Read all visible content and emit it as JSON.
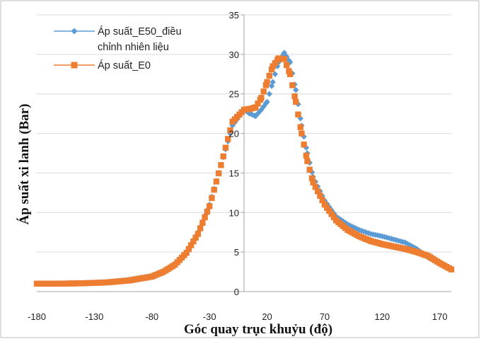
{
  "chart_data": {
    "type": "scatter",
    "title": "",
    "xlabel": "Góc quay trục khuỷu (độ)",
    "ylabel": "Áp suất xi lanh (Bar)",
    "xlim": [
      -180,
      180
    ],
    "ylim": [
      0,
      35
    ],
    "xticks": [
      -180,
      -130,
      -80,
      -30,
      20,
      70,
      120,
      170
    ],
    "yticks": [
      0,
      5,
      10,
      15,
      20,
      25,
      30,
      35
    ],
    "grid": "horizontal",
    "legend_position": "top-left",
    "series": [
      {
        "name": "Áp suất_E50_điều chỉnh nhiên liệu",
        "legend_lines": [
          "Áp suất_E50_điều",
          "chỉnh nhiên liệu"
        ],
        "color": "#5b9bd5",
        "marker": "diamond",
        "x": [
          -180,
          -160,
          -140,
          -120,
          -100,
          -80,
          -70,
          -60,
          -50,
          -40,
          -30,
          -20,
          -10,
          0,
          5,
          10,
          15,
          20,
          25,
          30,
          35,
          40,
          45,
          50,
          55,
          60,
          70,
          80,
          90,
          100,
          110,
          120,
          130,
          140,
          150,
          160,
          170,
          180
        ],
        "y": [
          1.0,
          1.05,
          1.1,
          1.2,
          1.5,
          2.0,
          2.6,
          3.5,
          5.0,
          7.5,
          11.0,
          16.0,
          21.0,
          23.0,
          22.5,
          22.2,
          23.0,
          24.0,
          26.5,
          29.0,
          30.2,
          29.0,
          25.5,
          21.0,
          17.5,
          14.5,
          11.5,
          9.5,
          8.5,
          7.8,
          7.3,
          7.0,
          6.6,
          6.2,
          5.4,
          4.3,
          3.5,
          2.8
        ]
      },
      {
        "name": "Áp suất_E0",
        "legend_lines": [
          "Áp suất_E0"
        ],
        "color": "#ed7d31",
        "marker": "square",
        "x": [
          -180,
          -160,
          -140,
          -120,
          -100,
          -80,
          -70,
          -60,
          -50,
          -40,
          -30,
          -20,
          -10,
          0,
          5,
          10,
          15,
          20,
          25,
          30,
          35,
          40,
          45,
          50,
          55,
          60,
          70,
          80,
          90,
          100,
          110,
          120,
          130,
          140,
          150,
          160,
          170,
          180
        ],
        "y": [
          1.0,
          1.0,
          1.05,
          1.15,
          1.4,
          1.9,
          2.5,
          3.4,
          4.9,
          7.3,
          10.8,
          16.0,
          21.5,
          23.0,
          23.1,
          23.3,
          24.5,
          26.5,
          28.5,
          29.5,
          29.4,
          27.5,
          24.0,
          20.0,
          16.5,
          13.8,
          11.0,
          9.0,
          7.8,
          7.0,
          6.4,
          6.0,
          5.7,
          5.4,
          5.0,
          4.5,
          3.6,
          2.8
        ]
      }
    ]
  }
}
